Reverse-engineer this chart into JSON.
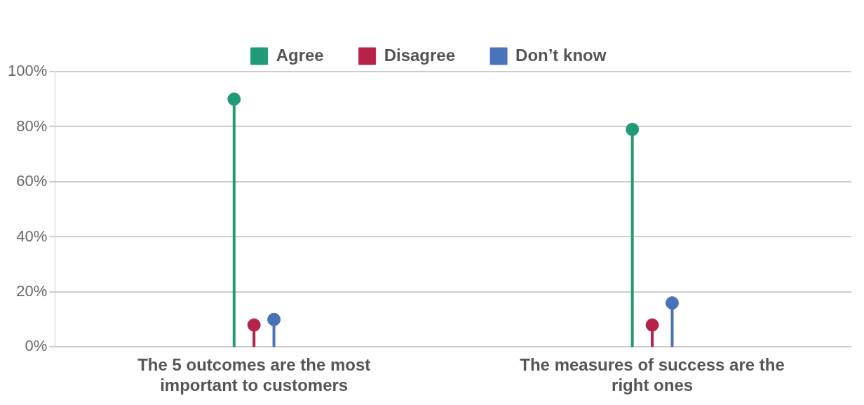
{
  "chart_data": {
    "type": "lollipop",
    "categories": [
      "The 5 outcomes are the most important to customers",
      "The measures of success are the right ones"
    ],
    "series": [
      {
        "name": "Agree",
        "color": "#229977",
        "values": [
          90,
          79
        ]
      },
      {
        "name": "Disagree",
        "color": "#b5234a",
        "values": [
          8,
          8
        ]
      },
      {
        "name": "Don’t know",
        "color": "#4a72b8",
        "values": [
          10,
          16
        ]
      }
    ],
    "ylim": [
      0,
      100
    ],
    "yticks": [
      {
        "value": 0,
        "label": "0%"
      },
      {
        "value": 20,
        "label": "20%"
      },
      {
        "value": 40,
        "label": "40%"
      },
      {
        "value": 60,
        "label": "60%"
      },
      {
        "value": 80,
        "label": "80%"
      },
      {
        "value": 100,
        "label": "100%"
      }
    ],
    "grid": "y",
    "legend": "top",
    "marker": "circle"
  }
}
